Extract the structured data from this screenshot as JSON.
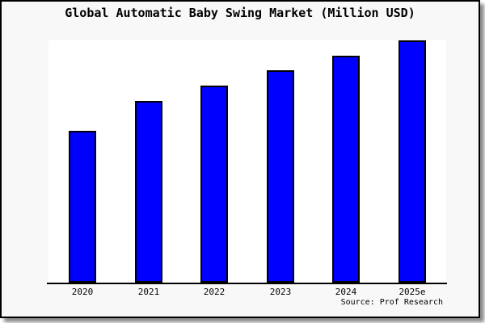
{
  "window": {
    "page_background": "#ffffff",
    "frame_background": "#f8f8f8",
    "frame_border_color": "#000000",
    "shadow_color": "#777777"
  },
  "chart_data": {
    "type": "bar",
    "title": "Global Automatic Baby Swing Market (Million USD)",
    "categories": [
      "2020",
      "2021",
      "2022",
      "2023",
      "2024",
      "2025e"
    ],
    "values": [
      188,
      225,
      244,
      263,
      281,
      300
    ],
    "ylim": [
      0,
      300
    ],
    "y_axis_labels_shown": false,
    "grid": false,
    "legend": false,
    "xlabel": "",
    "ylabel": "",
    "bar_color": "#0000ff",
    "bar_border_color": "#000000",
    "plot_background": "#ffffff"
  },
  "source": {
    "label": "Source: Prof Research"
  }
}
